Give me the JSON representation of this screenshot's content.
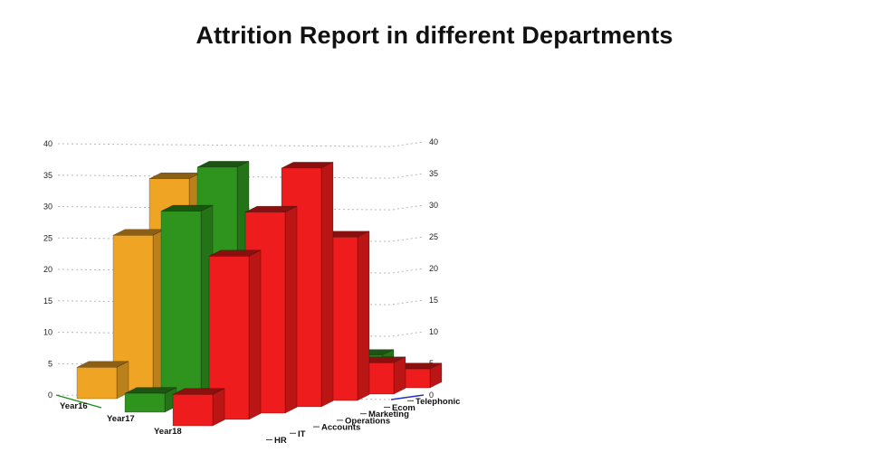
{
  "title": "Attrition Report in different Departments",
  "chart_data": {
    "type": "bar",
    "subtype": "3d-column",
    "title": "Attrition Report in different Departments",
    "categories": [
      "HR",
      "IT",
      "Accounts",
      "Operations",
      "Marketing",
      "Ecom",
      "Telephonic"
    ],
    "series": [
      {
        "name": "Year16",
        "color": "#EFA424",
        "values": [
          5,
          25,
          33,
          12,
          10,
          6,
          2
        ]
      },
      {
        "name": "Year17",
        "color": "#2F941D",
        "values": [
          3,
          31,
          37,
          16,
          12,
          8,
          3
        ]
      },
      {
        "name": "Year18",
        "color": "#EE1C1C",
        "values": [
          5,
          26,
          32,
          38,
          26,
          5,
          3
        ]
      }
    ],
    "ylim": [
      0,
      40
    ],
    "ytick_step": 5,
    "grid": "dashed",
    "legend_position": "none",
    "axis_baseline_colors": {
      "depth_axis": "#1E8A1E",
      "value_axis": "#2233BB"
    }
  }
}
